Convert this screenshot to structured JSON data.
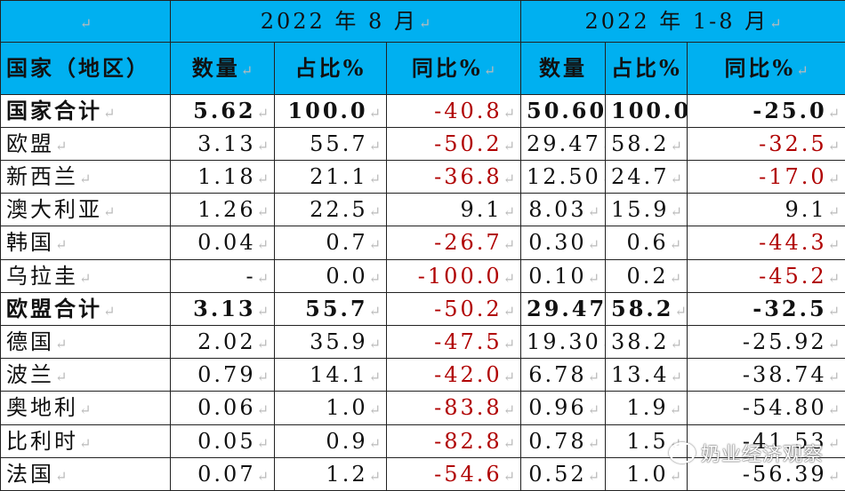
{
  "header": {
    "period1": "2022 年 8 月",
    "period2": "2022 年 1-8 月",
    "col_country": "国家（地区）",
    "col_qty": "数量",
    "col_share": "占比%",
    "col_yoy": "同比%"
  },
  "rows": [
    {
      "name": "国家合计",
      "q1": "5.62",
      "s1": "100.0",
      "y1": "-40.8",
      "q2": "50.60",
      "s2": "100.0",
      "y2": "-25.0"
    },
    {
      "name": "欧盟",
      "q1": "3.13",
      "s1": "55.7",
      "y1": "-50.2",
      "q2": "29.47",
      "s2": "58.2",
      "y2": "-32.5"
    },
    {
      "name": "新西兰",
      "q1": "1.18",
      "s1": "21.1",
      "y1": "-36.8",
      "q2": "12.50",
      "s2": "24.7",
      "y2": "-17.0"
    },
    {
      "name": "澳大利亚",
      "q1": "1.26",
      "s1": "22.5",
      "y1": "9.1",
      "q2": "8.03",
      "s2": "15.9",
      "y2": "9.1"
    },
    {
      "name": "韩国",
      "q1": "0.04",
      "s1": "0.7",
      "y1": "-26.7",
      "q2": "0.30",
      "s2": "0.6",
      "y2": "-44.3"
    },
    {
      "name": "乌拉圭",
      "q1": "-",
      "s1": "0.0",
      "y1": "-100.0",
      "q2": "0.10",
      "s2": "0.2",
      "y2": "-45.2"
    },
    {
      "name": "欧盟合计",
      "q1": "3.13",
      "s1": "55.7",
      "y1": "-50.2",
      "q2": "29.47",
      "s2": "58.2",
      "y2": "-32.5"
    },
    {
      "name": "德国",
      "q1": "2.02",
      "s1": "35.9",
      "y1": "-47.5",
      "q2": "19.30",
      "s2": "38.2",
      "y2": "-25.92"
    },
    {
      "name": "波兰",
      "q1": "0.79",
      "s1": "14.1",
      "y1": "-42.0",
      "q2": "6.78",
      "s2": "13.4",
      "y2": "-38.74"
    },
    {
      "name": "奥地利",
      "q1": "0.06",
      "s1": "1.0",
      "y1": "-83.8",
      "q2": "0.96",
      "s2": "1.9",
      "y2": "-54.80"
    },
    {
      "name": "比利时",
      "q1": "0.05",
      "s1": "0.9",
      "y1": "-82.8",
      "q2": "0.78",
      "s2": "1.5",
      "y2": "-41.53"
    },
    {
      "name": "法国",
      "q1": "0.07",
      "s1": "1.2",
      "y1": "-54.6",
      "q2": "0.52",
      "s2": "1.0",
      "y2": "-56.39"
    }
  ],
  "watermark": "奶业经济观察",
  "colors": {
    "header_bg": "#00b0f0",
    "negative_red": "#b00000"
  }
}
